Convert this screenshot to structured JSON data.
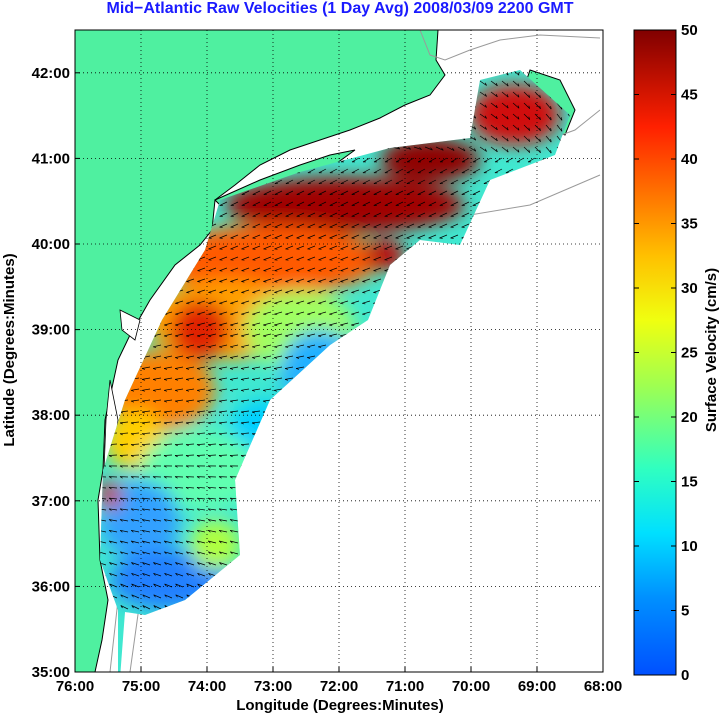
{
  "title": "Mid−Atlantic Raw Velocities (1 Day Avg) 2008/03/09 2200 GMT",
  "map": {
    "xlabel": "Longitude (Degrees:Minutes)",
    "ylabel": "Latitude (Degrees:Minutes)",
    "x_ticks": [
      "76:00",
      "75:00",
      "74:00",
      "73:00",
      "72:00",
      "71:00",
      "70:00",
      "69:00",
      "68:00"
    ],
    "y_ticks": [
      "42:00",
      "41:00",
      "40:00",
      "39:00",
      "38:00",
      "37:00",
      "36:00",
      "35:00"
    ],
    "lon_range": [
      -76,
      -68
    ],
    "lat_range": [
      35,
      42.5
    ],
    "grid": "dotted",
    "colors": {
      "land": "#4ff0a0",
      "ocean": "#ffffff",
      "bathymetry": "#9a9a9a",
      "vector": "#000000"
    }
  },
  "colorbar": {
    "label": "Surface Velocity (cm/s)",
    "min": 0,
    "max": 50,
    "ticks": [
      "50",
      "45",
      "40",
      "35",
      "30",
      "25",
      "20",
      "15",
      "10",
      "5",
      "0"
    ],
    "colormap": "jet"
  }
}
